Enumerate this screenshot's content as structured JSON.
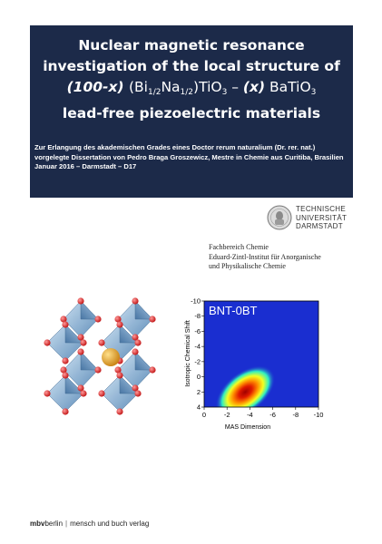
{
  "title": {
    "line1": "Nuclear magnetic resonance",
    "line2": "investigation of the local structure of",
    "formula": {
      "part1": "(100-x)",
      "part2": "(Bi",
      "sub1": "1/2",
      "part3": "Na",
      "sub2": "1/2",
      "part4": ")TiO",
      "sub3": "3",
      "dash": " – ",
      "part5": "(x)",
      "part6": " BaTiO",
      "sub4": "3"
    },
    "line4": "lead-free piezoelectric materials"
  },
  "subtitle": {
    "line1": "Zur Erlangung des akademischen Grades eines Doctor rerum naturalium (Dr. rer. nat.)",
    "line2": "vorgelegte Dissertation von Pedro Braga Groszewicz, Mestre in Chemie aus Curitiba, Brasilien",
    "line3": "Januar 2016 – Darmstadt – D17"
  },
  "university": {
    "line1": "TECHNISCHE",
    "line2": "UNIVERSITÄT",
    "line3": "DARMSTADT"
  },
  "department": {
    "line1": "Fachbereich Chemie",
    "line2": "Eduard-Zintl-Institut für Anorganische",
    "line3": "und Physikalische Chemie"
  },
  "chart_data": {
    "type": "heatmap",
    "title": "BNT-0BT",
    "xlabel": "MAS Dimension",
    "ylabel": "Isotropic Chemical Shift",
    "x_ticks": [
      "0",
      "-2",
      "-4",
      "-6",
      "-8",
      "-10"
    ],
    "y_ticks": [
      "-10",
      "-8",
      "-6",
      "-4",
      "-2",
      "0",
      "2",
      "4"
    ],
    "xlim": [
      0,
      -10
    ],
    "ylim": [
      -10,
      4
    ],
    "peak": {
      "x": -3.6,
      "y": 2.0
    },
    "colors": {
      "background": "#1a2ed0",
      "peak": "#b50000"
    }
  },
  "footer": {
    "publisher_bold": "mbv",
    "publisher_rest": "berlin",
    "separator": "|",
    "publisher_name": "mensch und buch verlag"
  },
  "colors": {
    "title_background": "#1c2a49",
    "octahedra": "#8fb8dc",
    "oxygen_atoms": "#e02020",
    "center_atom": "#e4a020"
  }
}
